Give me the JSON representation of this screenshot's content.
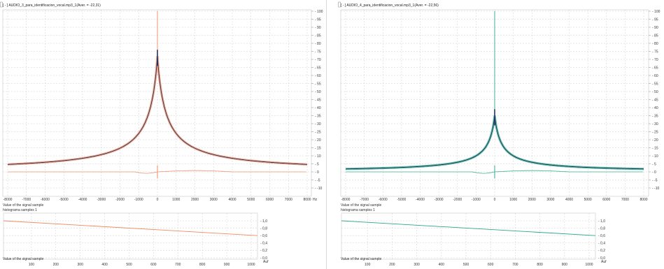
{
  "colors": {
    "left_accent": "#f08a60",
    "right_accent": "#2aa88a",
    "main_curve_dark": "#26335f",
    "grid": "#cfcfcf"
  },
  "panels": [
    {
      "window_controls": "[ - ]",
      "title": "AUDIO_3_para_identificacion_vocal.mp3_1(Aver. = -22,31)",
      "x_axis_unit": "Hz",
      "x_ticks": [
        "-8000",
        "-7000",
        "-6000",
        "-5000",
        "-4000",
        "-3000",
        "-2000",
        "-1000",
        "0",
        "1000",
        "2000",
        "3000",
        "4000",
        "5000",
        "6000",
        "7000",
        "8000"
      ],
      "y_ticks": [
        "100",
        "95",
        "90",
        "85",
        "80",
        "75",
        "70",
        "65",
        "60",
        "55",
        "50",
        "45",
        "40",
        "35",
        "30",
        "25",
        "20",
        "15",
        "10",
        "5",
        "0",
        "-5",
        "-10"
      ],
      "main_xlabel": "Value of the signal sample",
      "hist_title": "histograma samples 1",
      "hist_y_ticks": [
        "1,0",
        "0,8",
        "0,6",
        "0,4",
        "0,2",
        "0,0"
      ],
      "hist_x_ticks": [
        "100",
        "200",
        "300",
        "400",
        "500",
        "600",
        "700",
        "800",
        "900",
        "1000"
      ],
      "hist_unit": "Auf",
      "hist_xlabel": "Value of the signal sample"
    },
    {
      "window_controls": "[ - ]",
      "title": "AUDIO_4_para_identificacion_vocal.mp3_1(Aver. = -22,56)",
      "x_axis_unit": "",
      "x_ticks": [
        "-8000",
        "-7000",
        "-6000",
        "-5000",
        "-4000",
        "-3000",
        "-2000",
        "-1000",
        "0",
        "1000",
        "2000",
        "3000",
        "4000",
        "5000",
        "6000",
        "7000",
        "8000"
      ],
      "y_ticks": [
        "100",
        "95",
        "90",
        "85",
        "80",
        "75",
        "70",
        "65",
        "60",
        "55",
        "50",
        "45",
        "40",
        "35",
        "30",
        "25",
        "20",
        "15",
        "10",
        "5",
        "0",
        "-5",
        "-10"
      ],
      "main_xlabel": "Value of the signal sample",
      "hist_title": "histograma samples 1",
      "hist_y_ticks": [
        "1,0",
        "0,8",
        "0,6",
        "0,4",
        "0,2",
        "0,0"
      ],
      "hist_x_ticks": [
        "100",
        "200",
        "300",
        "400",
        "500",
        "600",
        "700",
        "800",
        "900",
        "1000"
      ],
      "hist_unit": "Auf",
      "hist_xlabel": "Value of the signal sample"
    }
  ],
  "chart_data": [
    {
      "type": "line",
      "title": "AUDIO_3_para_identificacion_vocal.mp3_1(Aver. = -22,31)",
      "xlim": [
        -8000,
        8000
      ],
      "ylim": [
        -10,
        100
      ],
      "peak_value": 72,
      "spike_value": 100,
      "baseline_value": 0,
      "series": [
        {
          "x": [
            -8000,
            -6000,
            -4000,
            -3000,
            -2000,
            -1000,
            -500,
            -200,
            0,
            200,
            500,
            1000,
            2000,
            3000,
            4000,
            6000,
            8000
          ],
          "values": [
            1,
            3,
            5,
            7,
            12,
            22,
            38,
            56,
            72,
            56,
            38,
            22,
            12,
            7,
            5,
            2,
            1
          ]
        }
      ]
    },
    {
      "type": "line",
      "title": "AUDIO_4_para_identificacion_vocal.mp3_1(Aver. = -22,56)",
      "xlim": [
        -8000,
        8000
      ],
      "ylim": [
        -10,
        100
      ],
      "peak_value": 35,
      "spike_value": 100,
      "baseline_value": 0,
      "series": [
        {
          "x": [
            -8000,
            -6000,
            -4000,
            -3000,
            -2000,
            -1000,
            -500,
            -200,
            0,
            200,
            500,
            1000,
            2000,
            3000,
            4000,
            6000,
            8000
          ],
          "values": [
            0.5,
            1.5,
            3,
            4,
            6,
            10,
            17,
            27,
            35,
            27,
            17,
            10,
            6,
            4,
            3,
            1,
            0.5
          ]
        }
      ]
    },
    {
      "type": "line",
      "title": "histograma samples 1",
      "x": [
        0,
        1000
      ],
      "values": [
        1.0,
        0.6
      ],
      "ylim": [
        0.0,
        1.0
      ]
    },
    {
      "type": "line",
      "title": "histograma samples 1",
      "x": [
        0,
        1000
      ],
      "values": [
        1.0,
        0.6
      ],
      "ylim": [
        0.0,
        1.0
      ]
    }
  ]
}
